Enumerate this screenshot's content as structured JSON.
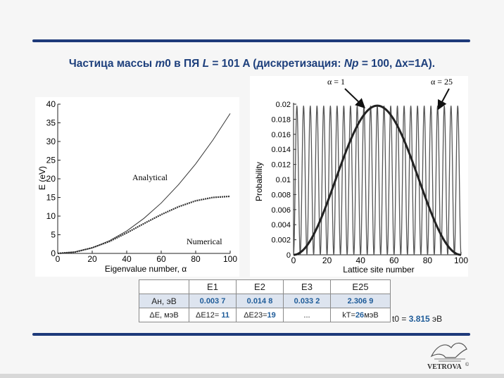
{
  "slide": {
    "title_parts": [
      "Частица массы ",
      "m",
      "0 в ПЯ ",
      "L",
      " = 101 A (дискретизация: ",
      "Np",
      " = 100, ∆x=1A)."
    ],
    "accent_color": "#1e3a7a",
    "title_color": "#1d3f7c"
  },
  "chart_data": [
    {
      "type": "line",
      "ylabel": "E (eV)",
      "xlabel": "Eigenvalue number, α",
      "xlim": [
        0,
        100
      ],
      "ylim": [
        0,
        40
      ],
      "x_ticks": [
        0,
        20,
        40,
        60,
        80,
        100
      ],
      "y_ticks": [
        0,
        5,
        10,
        15,
        20,
        25,
        30,
        35,
        40
      ],
      "annotations": [
        "Analytical",
        "Numerical"
      ],
      "series": [
        {
          "name": "Analytical",
          "x": [
            0,
            10,
            20,
            30,
            40,
            50,
            60,
            70,
            80,
            90,
            100
          ],
          "values": [
            0,
            0.38,
            1.5,
            3.4,
            6.0,
            9.4,
            13.5,
            18.4,
            24.0,
            30.4,
            37.5
          ]
        },
        {
          "name": "Numerical",
          "x": [
            0,
            10,
            20,
            30,
            40,
            50,
            60,
            70,
            80,
            90,
            100
          ],
          "values": [
            0,
            0.37,
            1.5,
            3.2,
            5.5,
            8.0,
            10.4,
            12.5,
            14.1,
            15.0,
            15.3
          ]
        }
      ]
    },
    {
      "type": "line",
      "ylabel": "Probability",
      "xlabel": "Lattice site number",
      "xlim": [
        0,
        100
      ],
      "ylim": [
        0,
        0.02
      ],
      "x_ticks": [
        0,
        20,
        40,
        60,
        80,
        100
      ],
      "y_ticks": [
        "0",
        "0.002",
        "0.004",
        "0.006",
        "0.008",
        "0.01",
        "0.012",
        "0.014",
        "0.016",
        "0.018",
        "0.02"
      ],
      "annotations": [
        "α = 1",
        "α = 25"
      ],
      "series": [
        {
          "name": "α = 1",
          "peak": 0.0198,
          "x_peak": 50
        },
        {
          "name": "α = 25",
          "peak": 0.0198,
          "oscillations": 25
        }
      ]
    }
  ],
  "table": {
    "headers": [
      "",
      "E1",
      "E2",
      "E3",
      "E25"
    ],
    "row_an": [
      "Ан, эВ",
      "0.003 7",
      "0.014 8",
      "0.033 2",
      "2.306 9"
    ],
    "row_de_label": "ΔE, мэВ",
    "row_de": [
      {
        "prefix": "ΔE12= ",
        "value": "11",
        "suffix": ""
      },
      {
        "prefix": "ΔE23=",
        "value": "19",
        "suffix": ""
      },
      {
        "prefix": "...",
        "value": "",
        "suffix": ""
      },
      {
        "prefix": "kT=",
        "value": "26",
        "suffix": "мэВ"
      }
    ]
  },
  "t0": {
    "prefix": "t0 = ",
    "value": "3.815",
    "suffix": " эВ"
  },
  "logo": {
    "text": "VETROVA",
    "mark": "©"
  }
}
